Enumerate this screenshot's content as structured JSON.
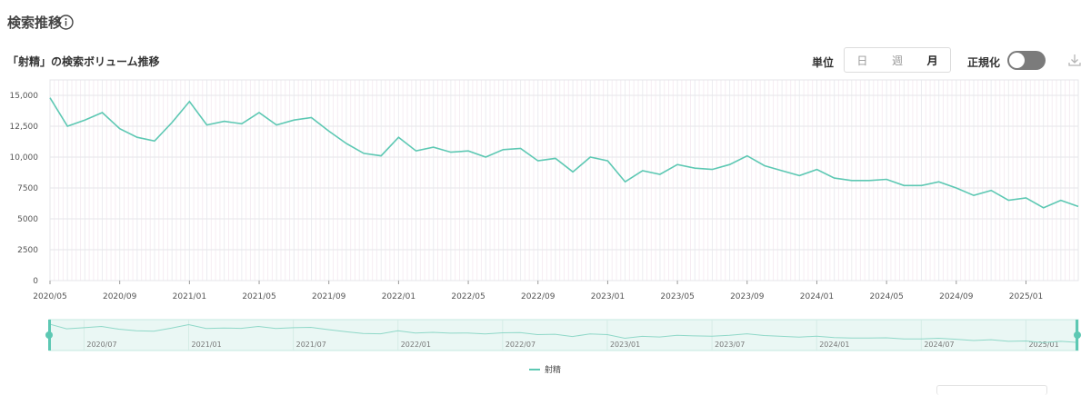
{
  "header": {
    "title": "検索推移"
  },
  "chart_header": {
    "title": "「射精」の検索ボリューム推移"
  },
  "controls": {
    "unit_label": "単位",
    "unit_options": [
      "日",
      "週",
      "月"
    ],
    "selected_unit": "月",
    "normalize_label": "正規化",
    "normalize_on": false
  },
  "chart_data": {
    "type": "line",
    "title": "「射精」の検索ボリューム推移",
    "xlabel": "",
    "ylabel": "",
    "ylim": [
      0,
      16250
    ],
    "yticks": [
      0,
      2500,
      5000,
      7500,
      10000,
      12500,
      15000
    ],
    "ytick_labels": [
      "0",
      "2500",
      "5000",
      "7500",
      "10,000",
      "12,500",
      "15,000"
    ],
    "xtick_labels": [
      "2020/05",
      "2020/09",
      "2021/01",
      "2021/05",
      "2021/09",
      "2022/01",
      "2022/05",
      "2022/09",
      "2023/01",
      "2023/05",
      "2023/09",
      "2024/01",
      "2024/05",
      "2024/09",
      "2025/01"
    ],
    "x": [
      "2020/05",
      "2020/06",
      "2020/07",
      "2020/08",
      "2020/09",
      "2020/10",
      "2020/11",
      "2020/12",
      "2021/01",
      "2021/02",
      "2021/03",
      "2021/04",
      "2021/05",
      "2021/06",
      "2021/07",
      "2021/08",
      "2021/09",
      "2021/10",
      "2021/11",
      "2021/12",
      "2022/01",
      "2022/02",
      "2022/03",
      "2022/04",
      "2022/05",
      "2022/06",
      "2022/07",
      "2022/08",
      "2022/09",
      "2022/10",
      "2022/11",
      "2022/12",
      "2023/01",
      "2023/02",
      "2023/03",
      "2023/04",
      "2023/05",
      "2023/06",
      "2023/07",
      "2023/08",
      "2023/09",
      "2023/10",
      "2023/11",
      "2023/12",
      "2024/01",
      "2024/02",
      "2024/03",
      "2024/04",
      "2024/05",
      "2024/06",
      "2024/07",
      "2024/08",
      "2024/09",
      "2024/10",
      "2024/11",
      "2024/12",
      "2025/01",
      "2025/02",
      "2025/03",
      "2025/04"
    ],
    "grid": true,
    "legend_position": "bottom",
    "series": [
      {
        "name": "射精",
        "color": "#5dc8b3",
        "values": [
          14800,
          12500,
          13000,
          13600,
          12300,
          11600,
          11300,
          12800,
          14500,
          12600,
          12900,
          12700,
          13600,
          12600,
          13000,
          13200,
          12100,
          11100,
          10300,
          10100,
          11600,
          10500,
          10800,
          10400,
          10500,
          10000,
          10600,
          10700,
          9700,
          9900,
          8800,
          10000,
          9700,
          8000,
          8900,
          8600,
          9400,
          9100,
          9000,
          9400,
          10100,
          9300,
          8900,
          8500,
          9000,
          8300,
          8100,
          8100,
          8200,
          7700,
          7700,
          8000,
          7500,
          6900,
          7300,
          6500,
          6700,
          5900,
          6500,
          6000
        ]
      }
    ]
  },
  "navigator": {
    "labels": [
      "2020/07",
      "2021/01",
      "2021/07",
      "2022/01",
      "2022/07",
      "2023/01",
      "2023/07",
      "2024/01",
      "2024/07",
      "2025/01"
    ]
  }
}
